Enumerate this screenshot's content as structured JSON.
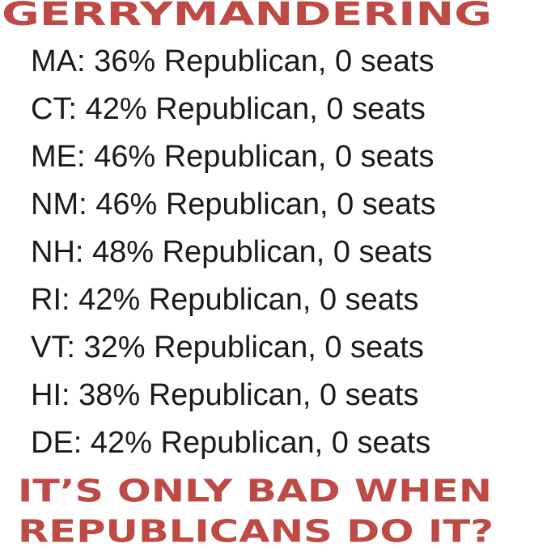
{
  "header": {
    "title": "GERRYMANDERING"
  },
  "lines": [
    "MA: 36% Republican, 0 seats",
    "CT: 42% Republican, 0 seats",
    "ME: 46% Republican, 0 seats",
    "NM: 46% Republican, 0 seats",
    "NH: 48% Republican, 0 seats",
    "RI: 42% Republican, 0 seats",
    "VT: 32% Republican, 0 seats",
    "HI: 38% Republican, 0 seats",
    "DE: 42% Republican, 0 seats"
  ],
  "footer": [
    "IT’S ONLY BAD WHEN",
    "REPUBLICANS DO IT?"
  ]
}
